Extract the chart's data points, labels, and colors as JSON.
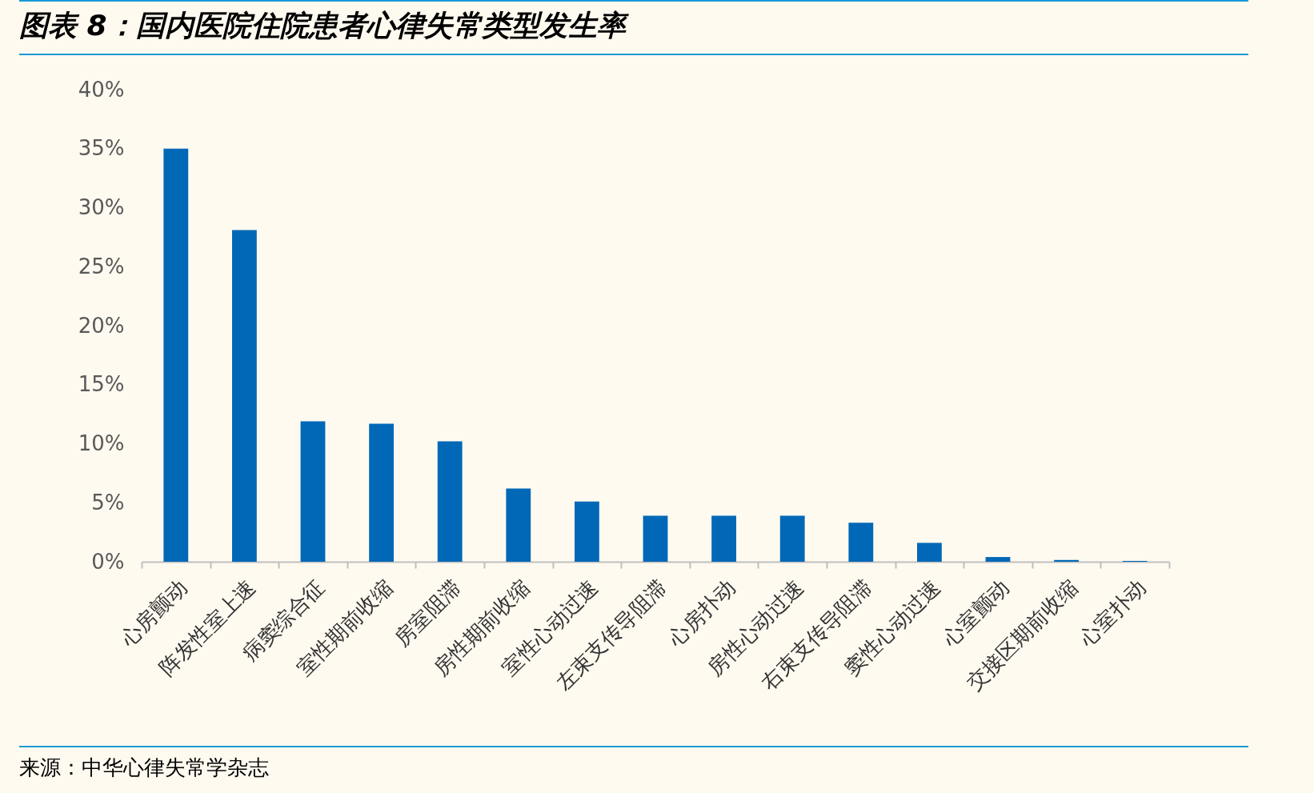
{
  "chart_data": {
    "type": "bar",
    "title": "图表 8：国内医院住院患者心律失常类型发生率",
    "categories": [
      "心房颤动",
      "阵发性室上速",
      "病窦综合征",
      "室性期前收缩",
      "房室阻滞",
      "房性期前收缩",
      "室性心动过速",
      "左束支传导阻滞",
      "心房扑动",
      "房性心动过速",
      "右束支传导阻滞",
      "窦性心动过速",
      "心室颤动",
      "交接区期前收缩",
      "心室扑动"
    ],
    "values": [
      35.0,
      28.1,
      11.9,
      11.7,
      10.2,
      6.2,
      5.1,
      3.9,
      3.9,
      3.9,
      3.3,
      1.6,
      0.4,
      0.15,
      0.07
    ],
    "color": "#0068b7",
    "ylim": [
      0,
      40
    ],
    "yticks": [
      {
        "value": 0,
        "label": "0%"
      },
      {
        "value": 5,
        "label": "5%"
      },
      {
        "value": 10,
        "label": "10%"
      },
      {
        "value": 15,
        "label": "15%"
      },
      {
        "value": 20,
        "label": "20%"
      },
      {
        "value": 25,
        "label": "25%"
      },
      {
        "value": 30,
        "label": "30%"
      },
      {
        "value": 35,
        "label": "35%"
      },
      {
        "value": 40,
        "label": "40%"
      }
    ],
    "grid": false,
    "annotations": [
      "来源：中华心律失常学杂志"
    ]
  }
}
